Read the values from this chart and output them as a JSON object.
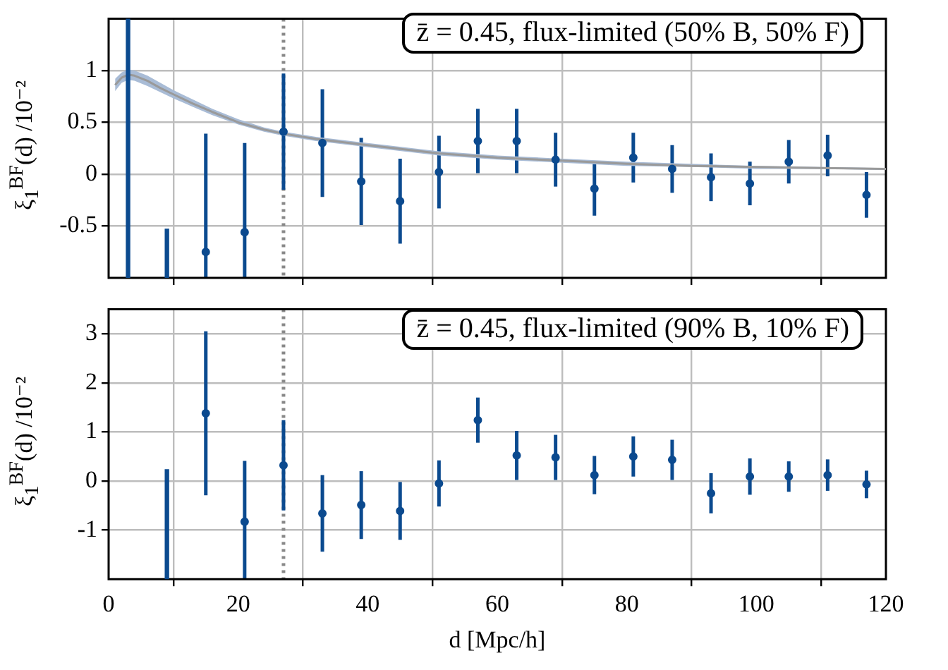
{
  "chart_data": [
    {
      "type": "scatter",
      "ylabel": "ξ$_{1}$$^{BF}$(d) /10⁻²",
      "annotations": [
        "z̄ = 0.45, flux-limited (50% B, 50% F)"
      ],
      "xlim": [
        0,
        120
      ],
      "xticks": [
        0,
        20,
        40,
        60,
        80,
        100,
        120
      ],
      "ylim": [
        -1,
        1.5
      ],
      "yticks": [
        {
          "value": -0.5,
          "label": "-0.5"
        },
        0,
        0.5,
        1
      ],
      "grid": true,
      "legend": false,
      "tick_labels": "y",
      "marker": "circle",
      "series": [
        {
          "type": "line",
          "marker": "none",
          "color": "#9a9a9a",
          "x": [
            1,
            2,
            3,
            4,
            6,
            8,
            10,
            13,
            16,
            20,
            24,
            27,
            32,
            40,
            51,
            60,
            70,
            80,
            90,
            100,
            110,
            120
          ],
          "values": [
            0.86,
            0.93,
            0.96,
            0.95,
            0.9,
            0.83,
            0.77,
            0.68,
            0.6,
            0.5,
            0.43,
            0.39,
            0.34,
            0.28,
            0.2,
            0.16,
            0.13,
            0.1,
            0.08,
            0.07,
            0.06,
            0.05
          ],
          "lower": [
            0.8,
            0.88,
            0.91,
            0.9,
            0.85,
            0.79,
            0.73,
            0.65,
            0.57,
            0.48,
            0.41,
            0.37,
            0.32,
            0.26,
            0.18,
            0.14,
            0.11,
            0.08,
            0.07,
            0.05,
            0.05,
            0.04
          ],
          "upper": [
            0.92,
            0.98,
            1.01,
            1.0,
            0.95,
            0.88,
            0.81,
            0.72,
            0.63,
            0.53,
            0.45,
            0.41,
            0.36,
            0.3,
            0.22,
            0.18,
            0.15,
            0.12,
            0.1,
            0.08,
            0.07,
            0.06
          ]
        },
        {
          "type": "bar",
          "color": "#0b4a8f",
          "x": [
            3,
            9
          ],
          "base": [
            -1,
            -1
          ],
          "values": [
            2.5,
            0.47
          ]
        },
        {
          "color": "#0b4a8f",
          "x": [
            15,
            21,
            27,
            33,
            39,
            45,
            51,
            57,
            63,
            69,
            75,
            81,
            87,
            93,
            99,
            105,
            111,
            117
          ],
          "values": [
            -0.75,
            -0.56,
            0.41,
            0.3,
            -0.07,
            -0.26,
            0.02,
            0.32,
            0.32,
            0.14,
            -0.14,
            0.16,
            0.05,
            -0.03,
            -0.09,
            0.12,
            0.18,
            -0.2
          ],
          "errors": [
            [
              -1,
              0.39
            ],
            [
              -1,
              0.3
            ],
            0.56,
            0.52,
            0.42,
            0.41,
            0.35,
            0.31,
            0.31,
            0.26,
            0.26,
            0.24,
            0.23,
            0.23,
            0.21,
            0.21,
            0.2,
            0.22
          ]
        }
      ],
      "ref_lines": [
        {
          "axis": "x",
          "value": 27,
          "color": "#888888",
          "line_style": "dotted"
        }
      ]
    },
    {
      "type": "scatter",
      "xlabel": "d [Mpc/h]",
      "ylabel": "ξ$_{1}$$^{BF}$(d) /10⁻²",
      "annotations": [
        "z̄ = 0.45, flux-limited (90% B, 10% F)"
      ],
      "xlim": [
        0,
        120
      ],
      "xticks": [
        0,
        20,
        40,
        60,
        80,
        100,
        120
      ],
      "ylim": [
        -2,
        3.5
      ],
      "yticks": [
        -1,
        0,
        1,
        2,
        3
      ],
      "grid": true,
      "legend": false,
      "marker": "circle",
      "series": [
        {
          "type": "bar",
          "color": "#0b4a8f",
          "x": [
            9
          ],
          "base": [
            -2
          ],
          "values": [
            2.23
          ]
        },
        {
          "color": "#0b4a8f",
          "x": [
            15,
            21,
            27,
            33,
            39,
            45,
            51,
            57,
            63,
            69,
            75,
            81,
            87,
            93,
            99,
            105,
            111,
            117
          ],
          "values": [
            1.38,
            -0.83,
            0.32,
            -0.66,
            -0.49,
            -0.61,
            -0.05,
            1.24,
            0.52,
            0.48,
            0.12,
            0.5,
            0.43,
            -0.25,
            0.09,
            0.09,
            0.12,
            -0.07
          ],
          "errors": [
            1.67,
            1.24,
            0.92,
            0.78,
            0.69,
            0.59,
            0.47,
            0.46,
            0.5,
            0.46,
            0.39,
            0.41,
            0.41,
            0.41,
            0.37,
            0.31,
            0.32,
            0.28
          ]
        }
      ],
      "ref_lines": [
        {
          "axis": "x",
          "value": 27,
          "color": "#888888",
          "line_style": "dotted"
        }
      ]
    }
  ]
}
